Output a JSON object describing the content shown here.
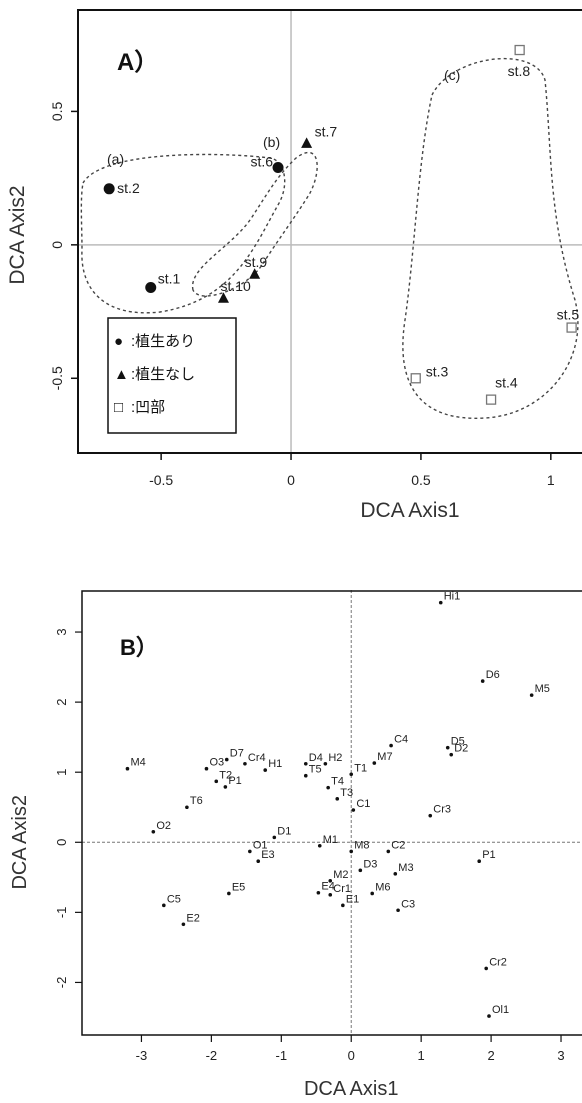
{
  "chart_data": [
    {
      "type": "scatter",
      "panel_label": "A）",
      "xlabel": "DCA Axis1",
      "ylabel": "DCA Axis2",
      "xlim": [
        -0.82,
        1.12
      ],
      "ylim": [
        -0.78,
        0.88
      ],
      "x_ticks": [
        -0.5,
        0,
        0.5,
        1
      ],
      "x_tick_labels": [
        "-0.5",
        "0",
        "0.5",
        "1"
      ],
      "y_ticks": [
        -0.5,
        0,
        0.5
      ],
      "y_tick_labels": [
        "-0.5",
        "0",
        "0.5"
      ],
      "reference_lines": "solid grey at x=0 and y=0",
      "points": [
        {
          "label": "st.1",
          "x": -0.54,
          "y": -0.16,
          "marker": "circle"
        },
        {
          "label": "st.2",
          "x": -0.7,
          "y": 0.21,
          "marker": "circle"
        },
        {
          "label": "st.6",
          "x": -0.05,
          "y": 0.29,
          "marker": "circle"
        },
        {
          "label": "st.7",
          "x": 0.06,
          "y": 0.38,
          "marker": "triangle"
        },
        {
          "label": "st.9",
          "x": -0.14,
          "y": -0.11,
          "marker": "triangle"
        },
        {
          "label": "st.10",
          "x": -0.26,
          "y": -0.2,
          "marker": "triangle"
        },
        {
          "label": "st.3",
          "x": 0.48,
          "y": -0.5,
          "marker": "square"
        },
        {
          "label": "st.4",
          "x": 0.77,
          "y": -0.58,
          "marker": "square"
        },
        {
          "label": "st.5",
          "x": 1.08,
          "y": -0.31,
          "marker": "square"
        },
        {
          "label": "st.8",
          "x": 0.88,
          "y": 0.73,
          "marker": "square"
        }
      ],
      "groups": [
        {
          "label": "(a)",
          "members": [
            "st.1",
            "st.2",
            "st.6"
          ]
        },
        {
          "label": "(b)",
          "members": [
            "st.6",
            "st.7",
            "st.9",
            "st.10"
          ]
        },
        {
          "label": "(c)",
          "members": [
            "st.3",
            "st.4",
            "st.5",
            "st.8"
          ]
        }
      ],
      "legend": {
        "placement": "bottom-left",
        "entries": [
          {
            "symbol": "●",
            "text": ":植生あり"
          },
          {
            "symbol": "▲",
            "text": ":植生なし"
          },
          {
            "symbol": "□",
            "text": ":凹部"
          }
        ]
      }
    },
    {
      "type": "scatter",
      "panel_label": "B）",
      "xlabel": "DCA Axis1",
      "ylabel": "DCA Axis2",
      "xlim": [
        -3.85,
        3.3
      ],
      "ylim": [
        -2.75,
        3.6
      ],
      "x_ticks": [
        -3,
        -2,
        -1,
        0,
        1,
        2,
        3
      ],
      "x_tick_labels": [
        "-3",
        "-2",
        "-1",
        "0",
        "1",
        "2",
        "3"
      ],
      "y_ticks": [
        -2,
        -1,
        0,
        1,
        2,
        3
      ],
      "y_tick_labels": [
        "-2",
        "-1",
        "0",
        "1",
        "2",
        "3"
      ],
      "reference_lines": "dashed at x=0 and y=0",
      "points": [
        {
          "label": "Hi1",
          "x": 1.28,
          "y": 3.42
        },
        {
          "label": "D6",
          "x": 1.88,
          "y": 2.3
        },
        {
          "label": "M5",
          "x": 2.58,
          "y": 2.1
        },
        {
          "label": "M4",
          "x": -3.2,
          "y": 1.05
        },
        {
          "label": "D7",
          "x": -1.78,
          "y": 1.18
        },
        {
          "label": "O3",
          "x": -2.07,
          "y": 1.05
        },
        {
          "label": "Cr4",
          "x": -1.52,
          "y": 1.12
        },
        {
          "label": "H1",
          "x": -1.23,
          "y": 1.03
        },
        {
          "label": "T2",
          "x": -1.93,
          "y": 0.87
        },
        {
          "label": "P1",
          "x": -1.8,
          "y": 0.79
        },
        {
          "label": "D4",
          "x": -0.65,
          "y": 1.12
        },
        {
          "label": "H2",
          "x": -0.37,
          "y": 1.12
        },
        {
          "label": "T5",
          "x": -0.65,
          "y": 0.95
        },
        {
          "label": "C4",
          "x": 0.57,
          "y": 1.38
        },
        {
          "label": "M7",
          "x": 0.33,
          "y": 1.13
        },
        {
          "label": "T1",
          "x": 0.0,
          "y": 0.97
        },
        {
          "label": "T4",
          "x": -0.33,
          "y": 0.78
        },
        {
          "label": "T3",
          "x": -0.2,
          "y": 0.62
        },
        {
          "label": "C1",
          "x": 0.03,
          "y": 0.46
        },
        {
          "label": "D5",
          "x": 1.38,
          "y": 1.35
        },
        {
          "label": "D2",
          "x": 1.43,
          "y": 1.25
        },
        {
          "label": "Cr3",
          "x": 1.13,
          "y": 0.38
        },
        {
          "label": "T6",
          "x": -2.35,
          "y": 0.5
        },
        {
          "label": "O2",
          "x": -2.83,
          "y": 0.15
        },
        {
          "label": "D1",
          "x": -1.1,
          "y": 0.07
        },
        {
          "label": "O1",
          "x": -1.45,
          "y": -0.13
        },
        {
          "label": "M1",
          "x": -0.45,
          "y": -0.05
        },
        {
          "label": "E3",
          "x": -1.33,
          "y": -0.27
        },
        {
          "label": "M8",
          "x": 0.0,
          "y": -0.13
        },
        {
          "label": "C2",
          "x": 0.53,
          "y": -0.13
        },
        {
          "label": "D3",
          "x": 0.13,
          "y": -0.4
        },
        {
          "label": "M3",
          "x": 0.63,
          "y": -0.45
        },
        {
          "label": "P1",
          "x": 1.83,
          "y": -0.27
        },
        {
          "label": "E5",
          "x": -1.75,
          "y": -0.73
        },
        {
          "label": "M2",
          "x": -0.3,
          "y": -0.55
        },
        {
          "label": "E4",
          "x": -0.47,
          "y": -0.72
        },
        {
          "label": "Cr1",
          "x": -0.3,
          "y": -0.75
        },
        {
          "label": "M6",
          "x": 0.3,
          "y": -0.73
        },
        {
          "label": "E1",
          "x": -0.12,
          "y": -0.9
        },
        {
          "label": "C3",
          "x": 0.67,
          "y": -0.97
        },
        {
          "label": "C5",
          "x": -2.68,
          "y": -0.9
        },
        {
          "label": "E2",
          "x": -2.4,
          "y": -1.17
        },
        {
          "label": "Cr2",
          "x": 1.93,
          "y": -1.8
        },
        {
          "label": "Ol1",
          "x": 1.97,
          "y": -2.48
        }
      ]
    }
  ]
}
